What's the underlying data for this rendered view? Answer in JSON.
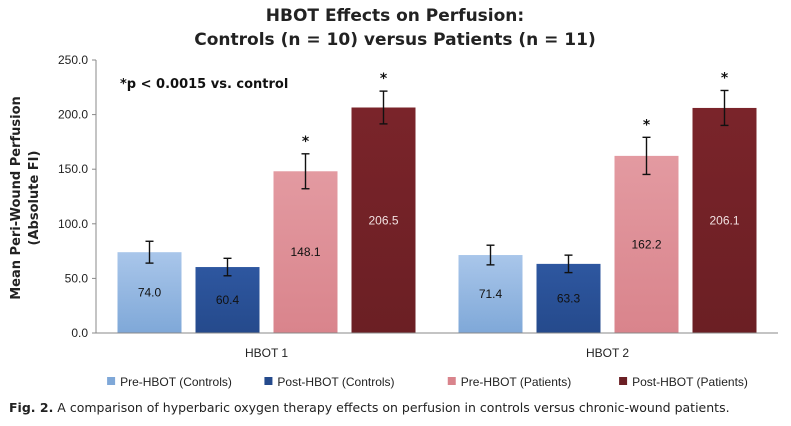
{
  "chart_data": {
    "type": "bar",
    "title_lines": [
      "HBOT Effects on Perfusion:",
      "Controls (n = 10) versus Patients (n = 11)"
    ],
    "ylabel_lines": [
      "Mean Peri-Wound Perfusion",
      "(Absolute FI)"
    ],
    "xlabel": "",
    "ylim": [
      0,
      250
    ],
    "yticks": [
      0,
      50,
      100,
      150,
      200,
      250
    ],
    "ytick_labels": [
      "0.0",
      "50.0",
      "100.0",
      "150.0",
      "200.0",
      "250.0"
    ],
    "categories": [
      "HBOT 1",
      "HBOT 2"
    ],
    "annotation": "*p < 0.0015 vs. control",
    "series": [
      {
        "name": "Pre-HBOT (Controls)",
        "values": [
          74.0,
          71.4
        ],
        "labels": [
          "74.0",
          "71.4"
        ],
        "err": [
          10,
          9
        ],
        "significant": [
          false,
          false
        ],
        "color": "#7fa8d8",
        "color_top": "#a9c6ea",
        "label_color": "#111111"
      },
      {
        "name": "Post-HBOT (Controls)",
        "values": [
          60.4,
          63.3
        ],
        "labels": [
          "60.4",
          "63.3"
        ],
        "err": [
          8,
          8
        ],
        "significant": [
          false,
          false
        ],
        "color": "#254a8c",
        "color_top": "#2e57a0",
        "label_color": "#111111"
      },
      {
        "name": "Pre-HBOT (Patients)",
        "values": [
          148.1,
          162.2
        ],
        "labels": [
          "148.1",
          "162.2"
        ],
        "err": [
          16,
          17
        ],
        "significant": [
          true,
          true
        ],
        "color": "#d9848c",
        "color_top": "#e39aa1",
        "label_color": "#111111"
      },
      {
        "name": "Post-HBOT (Patients)",
        "values": [
          206.5,
          206.1
        ],
        "labels": [
          "206.5",
          "206.1"
        ],
        "err": [
          15,
          16
        ],
        "significant": [
          true,
          true
        ],
        "color": "#6b1f24",
        "color_top": "#7a242a",
        "label_color": "#f0e0e0"
      }
    ],
    "significance_marker": "*"
  },
  "caption": {
    "label": "Fig. 2.",
    "text": " A comparison of hyperbaric oxygen therapy effects on perfusion in controls versus chronic-wound patients."
  }
}
